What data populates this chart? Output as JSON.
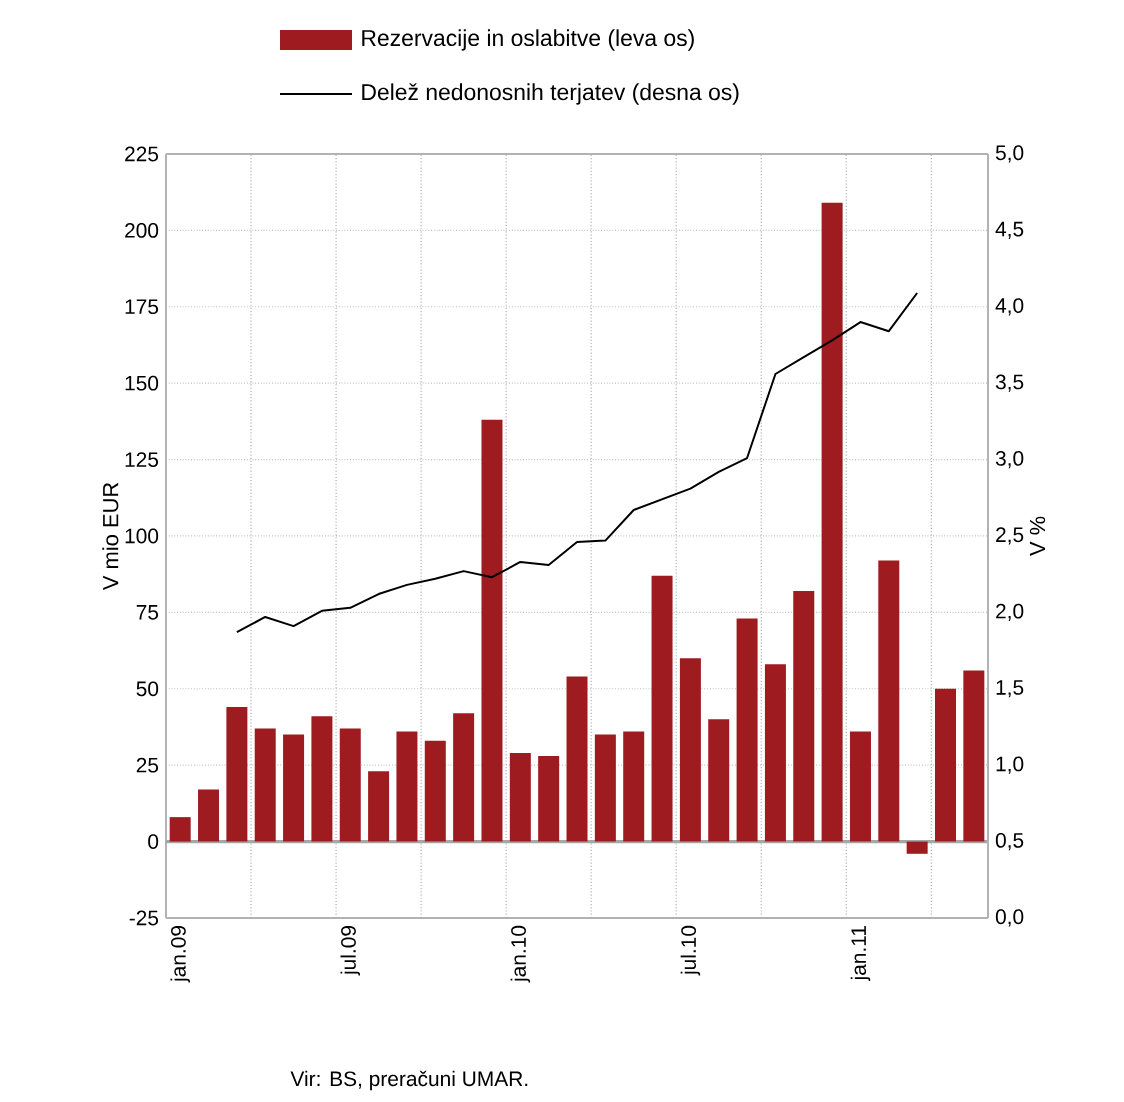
{
  "chart_data": {
    "type": "bar",
    "categories": [
      "jan.09",
      null,
      null,
      null,
      null,
      null,
      "jul.09",
      null,
      null,
      null,
      null,
      null,
      "jan.10",
      null,
      null,
      null,
      null,
      null,
      "jul.10",
      null,
      null,
      null,
      null,
      null,
      "jan.11",
      null,
      null,
      null,
      null
    ],
    "series": [
      {
        "name": "Rezervacije in oslabitve (leva os)",
        "color": "#9e1b20",
        "values": [
          8,
          17,
          44,
          37,
          35,
          41,
          37,
          23,
          36,
          33,
          42,
          138,
          29,
          28,
          54,
          35,
          36,
          87,
          60,
          40,
          73,
          58,
          82,
          209,
          36,
          92,
          -4,
          50,
          56
        ]
      },
      {
        "name": "Delež nedonosnih terjatev (desna os)",
        "type": "line",
        "axis": "y2",
        "color": "#000000",
        "values": [
          null,
          null,
          1.87,
          1.97,
          1.91,
          2.01,
          2.03,
          2.12,
          2.18,
          2.22,
          2.27,
          2.23,
          2.33,
          2.31,
          2.46,
          2.47,
          2.67,
          2.74,
          2.81,
          2.92,
          3.01,
          3.56,
          3.67,
          3.78,
          3.9,
          3.84,
          4.09,
          null,
          null
        ]
      }
    ],
    "ylabel": "V mio EUR",
    "y2label": "V %",
    "ylim": [
      -25,
      225
    ],
    "yticks": [
      -25,
      0,
      25,
      50,
      75,
      100,
      125,
      150,
      175,
      200,
      225
    ],
    "y2lim": [
      0,
      5
    ],
    "y2ticks": [
      {
        "value": 0,
        "label": "0,0"
      },
      {
        "value": 0.5,
        "label": "0,5"
      },
      {
        "value": 1,
        "label": "1,0"
      },
      {
        "value": 1.5,
        "label": "1,5"
      },
      {
        "value": 2,
        "label": "2,0"
      },
      {
        "value": 2.5,
        "label": "2,5"
      },
      {
        "value": 3,
        "label": "3,0"
      },
      {
        "value": 3.5,
        "label": "3,5"
      },
      {
        "value": 4,
        "label": "4,0"
      },
      {
        "value": 4.5,
        "label": "4,5"
      },
      {
        "value": 5,
        "label": "5,0"
      }
    ],
    "grid": true,
    "legend": "top",
    "line_style": "solid",
    "marker": "none",
    "annotations": [
      "Vir: BS, preračuni UMAR."
    ]
  }
}
